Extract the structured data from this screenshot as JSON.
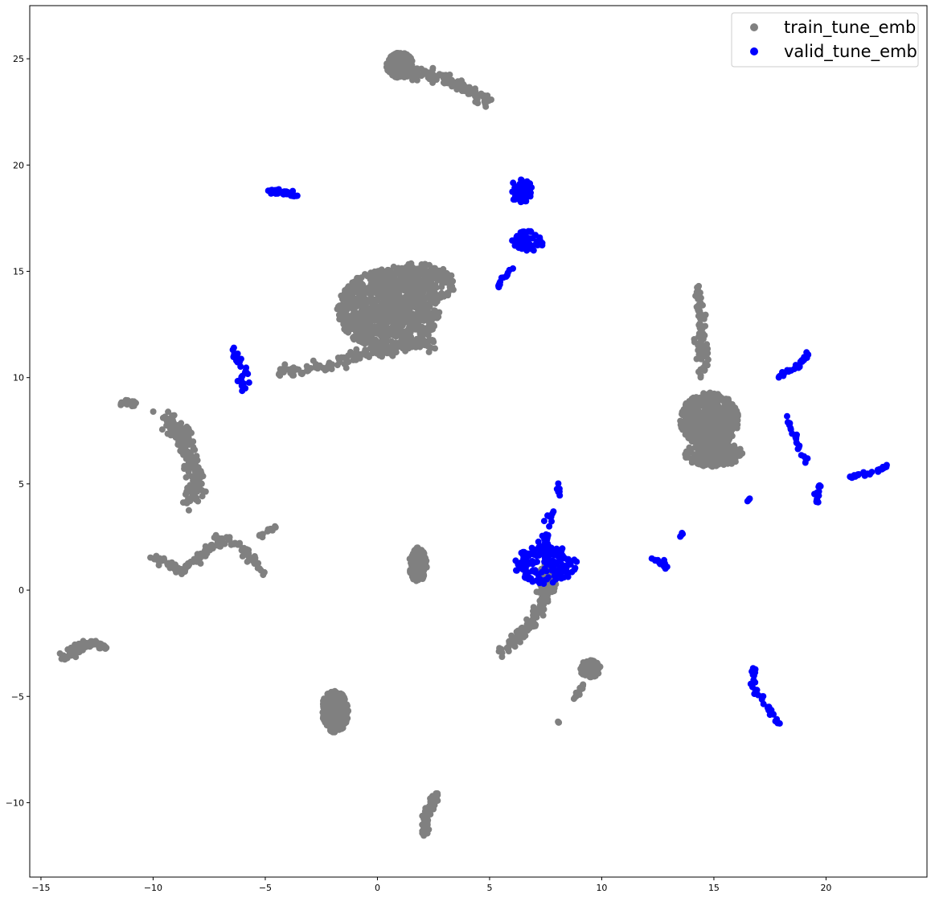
{
  "chart_data": {
    "type": "scatter",
    "title": "",
    "xlabel": "",
    "ylabel": "",
    "xlim": [
      -15.5,
      24.5
    ],
    "ylim": [
      -13.5,
      27.5
    ],
    "xticks": [
      -15,
      -10,
      -5,
      0,
      5,
      10,
      15,
      20
    ],
    "yticks": [
      -10,
      -5,
      0,
      5,
      10,
      15,
      20,
      25
    ],
    "grid": false,
    "legend_position": "top-right",
    "series": [
      {
        "name": "train_tune_emb",
        "color": "#808080",
        "clusters": [
          {
            "kind": "blob",
            "center": [
              0.5,
              13.2
            ],
            "spread": [
              2.3,
              1.9
            ],
            "n": 900
          },
          {
            "kind": "blob",
            "center": [
              1.6,
              14.4
            ],
            "spread": [
              1.9,
              1.0
            ],
            "n": 250
          },
          {
            "kind": "path",
            "points": [
              [
                -4.5,
                10.2
              ],
              [
                -2.5,
                10.5
              ],
              [
                -1.0,
                11.0
              ],
              [
                1.0,
                11.5
              ],
              [
                2.5,
                11.7
              ]
            ],
            "n": 160,
            "jitter": 0.15
          },
          {
            "kind": "blob",
            "center": [
              1.0,
              24.7
            ],
            "spread": [
              0.6,
              0.6
            ],
            "n": 180
          },
          {
            "kind": "path",
            "points": [
              [
                1.0,
                24.4
              ],
              [
                2.5,
                24.2
              ],
              [
                3.5,
                23.8
              ],
              [
                5.0,
                23.0
              ]
            ],
            "n": 120,
            "jitter": 0.15
          },
          {
            "kind": "blob",
            "center": [
              14.8,
              8.0
            ],
            "spread": [
              1.3,
              1.3
            ],
            "n": 500
          },
          {
            "kind": "blob",
            "center": [
              15.0,
              6.4
            ],
            "spread": [
              1.3,
              0.6
            ],
            "n": 180
          },
          {
            "kind": "path",
            "points": [
              [
                14.5,
                10.0
              ],
              [
                14.5,
                12.0
              ],
              [
                14.3,
                14.2
              ]
            ],
            "n": 90,
            "jitter": 0.12
          },
          {
            "kind": "path",
            "points": [
              [
                -11.5,
                8.8
              ],
              [
                -10.8,
                8.8
              ]
            ],
            "n": 18,
            "jitter": 0.06
          },
          {
            "kind": "path",
            "points": [
              [
                -9.5,
                8.1
              ],
              [
                -8.7,
                7.4
              ],
              [
                -8.4,
                6.7
              ],
              [
                -8.2,
                5.8
              ],
              [
                -8.1,
                5.0
              ],
              [
                -8.4,
                4.2
              ]
            ],
            "n": 180,
            "jitter": 0.2
          },
          {
            "kind": "path",
            "points": [
              [
                -10.0,
                1.6
              ],
              [
                -8.8,
                0.9
              ],
              [
                -7.8,
                1.6
              ],
              [
                -7.0,
                2.5
              ],
              [
                -6.0,
                2.0
              ],
              [
                -5.0,
                0.8
              ]
            ],
            "n": 130,
            "jitter": 0.1
          },
          {
            "kind": "path",
            "points": [
              [
                -5.3,
                2.5
              ],
              [
                -4.5,
                3.0
              ]
            ],
            "n": 14,
            "jitter": 0.05
          },
          {
            "kind": "path",
            "points": [
              [
                -14.0,
                -3.2
              ],
              [
                -13.0,
                -2.5
              ],
              [
                -12.2,
                -2.6
              ]
            ],
            "n": 110,
            "jitter": 0.1
          },
          {
            "kind": "blob",
            "center": [
              1.8,
              1.2
            ],
            "spread": [
              0.4,
              0.8
            ],
            "n": 120
          },
          {
            "kind": "blob",
            "center": [
              -1.9,
              -5.7
            ],
            "spread": [
              0.6,
              1.0
            ],
            "n": 220
          },
          {
            "kind": "path",
            "points": [
              [
                2.1,
                -11.5
              ],
              [
                2.2,
                -10.5
              ],
              [
                2.6,
                -9.7
              ]
            ],
            "n": 70,
            "jitter": 0.1
          },
          {
            "kind": "path",
            "points": [
              [
                5.4,
                -3.0
              ],
              [
                6.5,
                -2.0
              ],
              [
                7.2,
                -1.0
              ],
              [
                7.5,
                0.0
              ],
              [
                7.7,
                1.0
              ]
            ],
            "n": 140,
            "jitter": 0.12
          },
          {
            "kind": "blob",
            "center": [
              7.6,
              0.5
            ],
            "spread": [
              0.4,
              0.9
            ],
            "n": 120
          },
          {
            "kind": "blob",
            "center": [
              9.5,
              -3.7
            ],
            "spread": [
              0.5,
              0.4
            ],
            "n": 70
          },
          {
            "kind": "path",
            "points": [
              [
                8.8,
                -5.1
              ],
              [
                9.2,
                -4.4
              ]
            ],
            "n": 14,
            "jitter": 0.05
          },
          {
            "kind": "path",
            "points": [
              [
                8.0,
                -6.2
              ],
              [
                8.1,
                -6.2
              ]
            ],
            "n": 3,
            "jitter": 0.02
          }
        ]
      },
      {
        "name": "valid_tune_emb",
        "color": "#0000ff",
        "clusters": [
          {
            "kind": "path",
            "points": [
              [
                -4.8,
                18.8
              ],
              [
                -4.0,
                18.7
              ],
              [
                -3.6,
                18.5
              ]
            ],
            "n": 40,
            "jitter": 0.06
          },
          {
            "kind": "blob",
            "center": [
              6.4,
              18.8
            ],
            "spread": [
              0.5,
              0.6
            ],
            "n": 60
          },
          {
            "kind": "blob",
            "center": [
              6.7,
              16.4
            ],
            "spread": [
              0.7,
              0.5
            ],
            "n": 60
          },
          {
            "kind": "path",
            "points": [
              [
                5.3,
                14.2
              ],
              [
                6.0,
                15.2
              ]
            ],
            "n": 14,
            "jitter": 0.05
          },
          {
            "kind": "path",
            "points": [
              [
                -6.5,
                11.3
              ],
              [
                -6.0,
                10.5
              ],
              [
                -6.0,
                9.4
              ]
            ],
            "n": 32,
            "jitter": 0.1
          },
          {
            "kind": "path",
            "points": [
              [
                17.8,
                10.0
              ],
              [
                18.8,
                10.6
              ],
              [
                19.2,
                11.2
              ]
            ],
            "n": 28,
            "jitter": 0.06
          },
          {
            "kind": "path",
            "points": [
              [
                18.2,
                8.3
              ],
              [
                18.7,
                7.0
              ],
              [
                19.2,
                6.0
              ]
            ],
            "n": 22,
            "jitter": 0.06
          },
          {
            "kind": "path",
            "points": [
              [
                21.0,
                5.3
              ],
              [
                22.0,
                5.5
              ],
              [
                22.8,
                5.9
              ]
            ],
            "n": 30,
            "jitter": 0.06
          },
          {
            "kind": "path",
            "points": [
              [
                19.7,
                5.1
              ],
              [
                19.6,
                4.3
              ],
              [
                19.6,
                3.8
              ]
            ],
            "n": 14,
            "jitter": 0.05
          },
          {
            "kind": "path",
            "points": [
              [
                16.5,
                4.2
              ],
              [
                16.6,
                4.3
              ]
            ],
            "n": 4,
            "jitter": 0.02
          },
          {
            "kind": "path",
            "points": [
              [
                12.3,
                1.5
              ],
              [
                12.7,
                1.3
              ],
              [
                13.0,
                0.9
              ]
            ],
            "n": 12,
            "jitter": 0.05
          },
          {
            "kind": "path",
            "points": [
              [
                13.5,
                2.5
              ],
              [
                13.6,
                2.7
              ]
            ],
            "n": 4,
            "jitter": 0.02
          },
          {
            "kind": "path",
            "points": [
              [
                16.8,
                -3.7
              ],
              [
                16.8,
                -4.6
              ],
              [
                17.3,
                -5.3
              ],
              [
                17.9,
                -6.4
              ]
            ],
            "n": 36,
            "jitter": 0.08
          },
          {
            "kind": "blob",
            "center": [
              7.5,
              1.2
            ],
            "spread": [
              1.4,
              0.9
            ],
            "n": 160
          },
          {
            "kind": "path",
            "points": [
              [
                7.4,
                2.0
              ],
              [
                7.7,
                3.2
              ],
              [
                8.2,
                4.9
              ]
            ],
            "n": 28,
            "jitter": 0.12
          }
        ]
      }
    ]
  }
}
